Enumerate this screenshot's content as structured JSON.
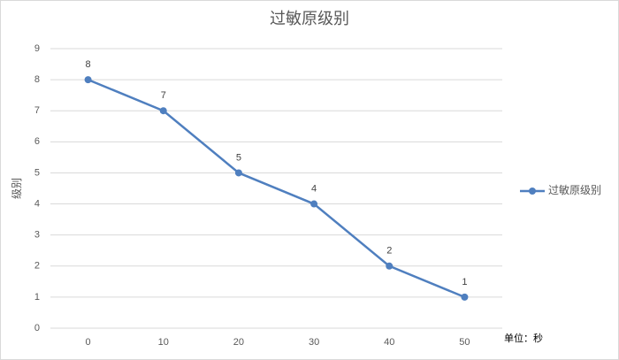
{
  "chart_data": {
    "type": "line",
    "title": "过敏原级别",
    "y_label": "级别",
    "categories": [
      "0",
      "10",
      "20",
      "30",
      "40",
      "50"
    ],
    "series": [
      {
        "name": "过敏原级别",
        "color": "#4f7fbf",
        "values": [
          8,
          7,
          5,
          4,
          2,
          1
        ]
      }
    ],
    "ylim": [
      0,
      9
    ],
    "yticks": [
      0,
      1,
      2,
      3,
      4,
      5,
      6,
      7,
      8,
      9
    ],
    "grid": true,
    "legend": "right",
    "annotation": "单位：秒"
  }
}
